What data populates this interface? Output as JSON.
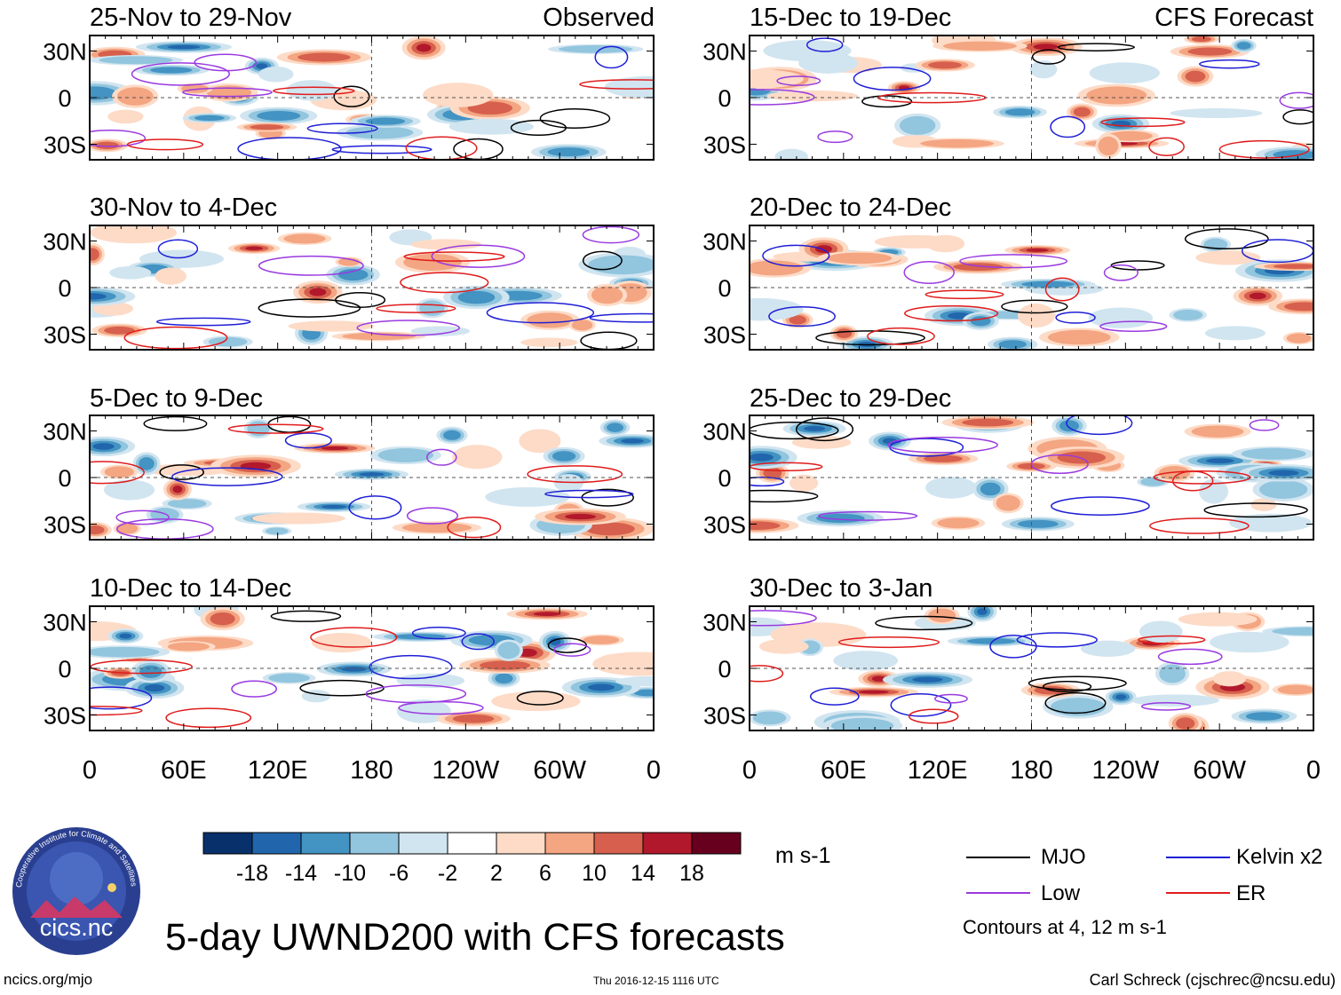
{
  "chart_data": {
    "type": "heatmap",
    "title": "5-day UWND200 with CFS forecasts",
    "variable": "UWND200",
    "units": "m s-1",
    "contour_note": "Contours at 4, 12 m s-1",
    "x_ticks": [
      "0",
      "60E",
      "120E",
      "180",
      "120W",
      "60W",
      "0"
    ],
    "x_tick_lons": [
      0,
      60,
      120,
      180,
      240,
      300,
      360
    ],
    "y_ticks": [
      "30N",
      "0",
      "30S"
    ],
    "y_tick_lats": [
      30,
      0,
      -30
    ],
    "xlim": [
      0,
      360
    ],
    "ylim": [
      -40,
      40
    ],
    "colorbar": {
      "ticks": [
        "-18",
        "-14",
        "-10",
        "-6",
        "-2",
        "2",
        "6",
        "10",
        "14",
        "18"
      ],
      "colors": [
        "#08306b",
        "#2166ac",
        "#4393c3",
        "#92c5de",
        "#d1e5f0",
        "#ffffff",
        "#fddbc7",
        "#f4a582",
        "#d6604d",
        "#b2182b",
        "#67001f"
      ]
    },
    "legend": [
      {
        "name": "MJO",
        "color": "#000000"
      },
      {
        "name": "Kelvin x2",
        "color": "#1f1fd6"
      },
      {
        "name": "Low",
        "color": "#9a3ae0"
      },
      {
        "name": "ER",
        "color": "#e01c1c"
      }
    ],
    "panels": [
      {
        "period": "25-Nov to 29-Nov",
        "label": "Observed",
        "source": "observed"
      },
      {
        "period": "30-Nov to 4-Dec",
        "label": "",
        "source": "observed"
      },
      {
        "period": "5-Dec to 9-Dec",
        "label": "",
        "source": "observed"
      },
      {
        "period": "10-Dec to 14-Dec",
        "label": "",
        "source": "observed"
      },
      {
        "period": "15-Dec to 19-Dec",
        "label": "CFS Forecast",
        "source": "forecast"
      },
      {
        "period": "20-Dec to 24-Dec",
        "label": "",
        "source": "forecast"
      },
      {
        "period": "25-Dec to 29-Dec",
        "label": "",
        "source": "forecast"
      },
      {
        "period": "30-Dec to 3-Jan",
        "label": "",
        "source": "forecast"
      }
    ]
  },
  "logo": {
    "text": "cics.nc",
    "ring_text": "Cooperative Institute for Climate and Satellites"
  },
  "footer": {
    "url": "ncics.org/mjo",
    "timestamp": "Thu 2016-12-15 1116 UTC",
    "author": "Carl Schreck (cjschrec@ncsu.edu)"
  }
}
